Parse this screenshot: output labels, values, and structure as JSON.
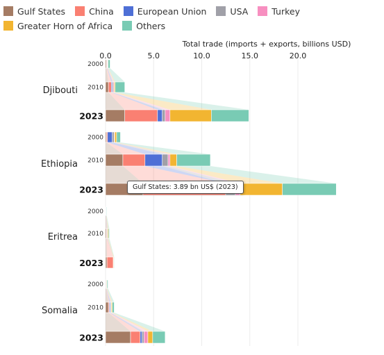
{
  "chart_data": {
    "type": "bar",
    "orientation": "horizontal",
    "stacked": true,
    "xlabel": "Total trade (imports + exports, billions USD)",
    "x_ticks": [
      "0.0",
      "5.0",
      "10.0",
      "15.0",
      "20.0"
    ],
    "xlim": [
      0,
      24.5
    ],
    "legend_position": "top",
    "series": [
      {
        "name": "Gulf States",
        "color": "#A57C64"
      },
      {
        "name": "China",
        "color": "#FA8072"
      },
      {
        "name": "European Union",
        "color": "#4E6FD6"
      },
      {
        "name": "USA",
        "color": "#A0A0A8"
      },
      {
        "name": "Turkey",
        "color": "#F78FC0"
      },
      {
        "name": "Greater Horn of Africa",
        "color": "#F2B531"
      },
      {
        "name": "Others",
        "color": "#79CBB4"
      }
    ],
    "countries": [
      {
        "name": "Djibouti",
        "rows": [
          {
            "year": "2000",
            "values": [
              0.1,
              0.05,
              0.05,
              0.02,
              0.0,
              0.05,
              0.2
            ]
          },
          {
            "year": "2010",
            "values": [
              0.3,
              0.3,
              0.1,
              0.1,
              0.1,
              0.1,
              1.0
            ]
          },
          {
            "year": "2023",
            "values": [
              2.0,
              3.4,
              0.5,
              0.3,
              0.5,
              4.3,
              3.9
            ]
          }
        ]
      },
      {
        "name": "Ethiopia",
        "rows": [
          {
            "year": "2000",
            "values": [
              0.1,
              0.1,
              0.5,
              0.2,
              0.05,
              0.2,
              0.4
            ]
          },
          {
            "year": "2010",
            "values": [
              1.8,
              2.3,
              1.8,
              0.6,
              0.2,
              0.7,
              3.5
            ]
          },
          {
            "year": "2023",
            "values": [
              3.89,
              8.6,
              0.0,
              1.0,
              0.5,
              4.4,
              5.6
            ]
          }
        ]
      },
      {
        "name": "Eritrea",
        "rows": [
          {
            "year": "2000",
            "values": [
              0.02,
              0.01,
              0.02,
              0.0,
              0.0,
              0.02,
              0.05
            ]
          },
          {
            "year": "2010",
            "values": [
              0.1,
              0.05,
              0.05,
              0.0,
              0.0,
              0.1,
              0.1
            ]
          },
          {
            "year": "2023",
            "values": [
              0.15,
              0.65,
              0.0,
              0.0,
              0.0,
              0.05,
              0.05
            ]
          }
        ]
      },
      {
        "name": "Somalia",
        "rows": [
          {
            "year": "2000",
            "values": [
              0.05,
              0.02,
              0.02,
              0.01,
              0.0,
              0.05,
              0.1
            ]
          },
          {
            "year": "2010",
            "values": [
              0.3,
              0.1,
              0.1,
              0.05,
              0.05,
              0.1,
              0.2
            ]
          },
          {
            "year": "2023",
            "values": [
              2.6,
              1.0,
              0.2,
              0.2,
              0.4,
              0.5,
              1.3
            ]
          }
        ]
      }
    ]
  },
  "tooltip": {
    "text": "Gulf States: 3.89 bn US$ (2023)"
  }
}
